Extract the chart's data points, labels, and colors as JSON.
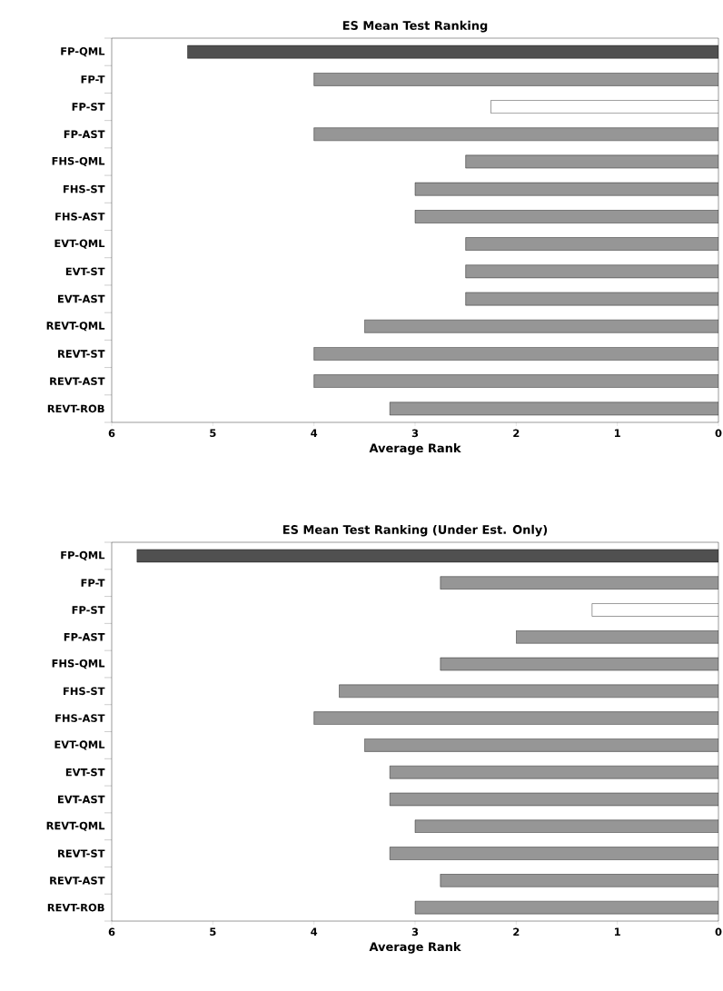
{
  "chart_data": [
    {
      "type": "bar",
      "orientation": "horizontal",
      "title": "ES Mean Test Ranking",
      "xlabel": "Average Rank",
      "categories": [
        "FP-QML",
        "FP-T",
        "FP-ST",
        "FP-AST",
        "FHS-QML",
        "FHS-ST",
        "FHS-AST",
        "EVT-QML",
        "EVT-ST",
        "EVT-AST",
        "REVT-QML",
        "REVT-ST",
        "REVT-AST",
        "REVT-ROB"
      ],
      "values": [
        5.25,
        4,
        2.25,
        4,
        2.5,
        3,
        3,
        2.5,
        2.5,
        2.5,
        3.5,
        4,
        4,
        3.25
      ],
      "colors": [
        "#505050",
        "#969696",
        "#ffffff",
        "#969696",
        "#969696",
        "#969696",
        "#969696",
        "#969696",
        "#969696",
        "#969696",
        "#969696",
        "#969696",
        "#969696",
        "#969696"
      ],
      "xlim": [
        6,
        0
      ],
      "xticks": [
        6,
        5,
        4,
        3,
        2,
        1,
        0
      ]
    },
    {
      "type": "bar",
      "orientation": "horizontal",
      "title": "ES Mean Test Ranking (Under Est. Only)",
      "xlabel": "Average Rank",
      "categories": [
        "FP-QML",
        "FP-T",
        "FP-ST",
        "FP-AST",
        "FHS-QML",
        "FHS-ST",
        "FHS-AST",
        "EVT-QML",
        "EVT-ST",
        "EVT-AST",
        "REVT-QML",
        "REVT-ST",
        "REVT-AST",
        "REVT-ROB"
      ],
      "values": [
        5.75,
        2.75,
        1.25,
        2,
        2.75,
        3.75,
        4,
        3.5,
        3.25,
        3.25,
        3,
        3.25,
        2.75,
        3
      ],
      "colors": [
        "#505050",
        "#969696",
        "#ffffff",
        "#969696",
        "#969696",
        "#969696",
        "#969696",
        "#969696",
        "#969696",
        "#969696",
        "#969696",
        "#969696",
        "#969696",
        "#969696"
      ],
      "xlim": [
        6,
        0
      ],
      "xticks": [
        6,
        5,
        4,
        3,
        2,
        1,
        0
      ]
    }
  ]
}
